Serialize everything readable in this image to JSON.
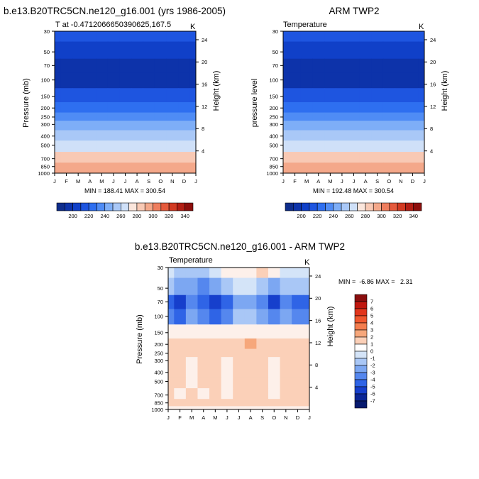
{
  "panels": [
    {
      "title": "b.e13.B20TRC5CN.ne120_g16.001 (yrs 1986-2005)",
      "left_string": "T at -0.4712066650390625,167.5",
      "right_string": "K",
      "ylabel_left": "Pressure (mb)",
      "ylabel_right": "Height (km)",
      "stats": "MIN = 188.41 MAX = 300.54"
    },
    {
      "title": "ARM TWP2",
      "left_string": "Temperature",
      "right_string": "K",
      "ylabel_left": "pressure level",
      "ylabel_right": "Height (km)",
      "stats": "MIN = 192.48 MAX = 300.54"
    },
    {
      "title": "b.e13.B20TRC5CN.ne120_g16.001 - ARM TWP2",
      "left_string": "Temperature",
      "right_string": "K",
      "ylabel_left": "Pressure (mb)",
      "ylabel_right": "Height (km)",
      "stats": "MIN =  -6.86 MAX =   2.31"
    }
  ],
  "chart_data": [
    {
      "type": "heatmap",
      "panel": "model",
      "x": [
        "J",
        "F",
        "M",
        "A",
        "M",
        "J",
        "J",
        "A",
        "S",
        "O",
        "N",
        "D",
        "J"
      ],
      "y_pressure_ticks": [
        30,
        50,
        70,
        100,
        150,
        200,
        250,
        300,
        400,
        500,
        700,
        850,
        1000
      ],
      "y_height_ticks_km": [
        4,
        8,
        12,
        16,
        20,
        24
      ],
      "rows_pressure_mb": [
        30,
        50,
        70,
        100,
        150,
        200,
        250,
        300,
        400,
        500,
        700,
        850,
        1000
      ],
      "values_K": [
        [
          214,
          214,
          213,
          212,
          212,
          213,
          214,
          215,
          216,
          216,
          215,
          214,
          214
        ],
        [
          205,
          205,
          204,
          203,
          202,
          203,
          204,
          205,
          206,
          206,
          205,
          205,
          205
        ],
        [
          197,
          196,
          195,
          194,
          194,
          195,
          196,
          197,
          197,
          197,
          196,
          196,
          197
        ],
        [
          195,
          195,
          195,
          195,
          195,
          195,
          195,
          195,
          195,
          195,
          195,
          195,
          195
        ],
        [
          212,
          212,
          212,
          212,
          212,
          212,
          212,
          212,
          212,
          212,
          212,
          212,
          212
        ],
        [
          221,
          221,
          221,
          221,
          221,
          221,
          221,
          221,
          221,
          221,
          221,
          221,
          221
        ],
        [
          232,
          232,
          232,
          232,
          232,
          232,
          232,
          232,
          232,
          232,
          232,
          232,
          232
        ],
        [
          242,
          242,
          242,
          242,
          242,
          242,
          242,
          242,
          242,
          242,
          242,
          242,
          242
        ],
        [
          259,
          259,
          259,
          259,
          259,
          259,
          259,
          259,
          259,
          259,
          259,
          259,
          259
        ],
        [
          268,
          268,
          268,
          268,
          268,
          268,
          268,
          268,
          268,
          268,
          268,
          268,
          268
        ],
        [
          283,
          283,
          283,
          283,
          283,
          283,
          283,
          283,
          283,
          283,
          283,
          283,
          283
        ],
        [
          291,
          291,
          291,
          291,
          291,
          291,
          291,
          291,
          291,
          291,
          291,
          291,
          291
        ],
        [
          297,
          297,
          297,
          297,
          297,
          297,
          297,
          297,
          297,
          297,
          297,
          297,
          297
        ]
      ],
      "ylim_mb": [
        30,
        1000
      ],
      "log_y": true
    },
    {
      "type": "heatmap",
      "panel": "obs",
      "x": [
        "J",
        "F",
        "M",
        "A",
        "M",
        "J",
        "J",
        "A",
        "S",
        "O",
        "N",
        "D",
        "J"
      ],
      "y_pressure_ticks": [
        30,
        50,
        70,
        100,
        150,
        200,
        250,
        300,
        400,
        500,
        700,
        850,
        1000
      ],
      "y_height_ticks_km": [
        4,
        8,
        12,
        16,
        20,
        24
      ],
      "rows_pressure_mb": [
        30,
        50,
        70,
        100,
        150,
        200,
        250,
        300,
        400,
        500,
        700,
        850,
        1000
      ],
      "values_K": [
        [
          214,
          213,
          213,
          212,
          211,
          211,
          212,
          213,
          214,
          215,
          215,
          215,
          214
        ],
        [
          206,
          205,
          204,
          203,
          202,
          201,
          200,
          201,
          203,
          205,
          206,
          206,
          206
        ],
        [
          199,
          198,
          197,
          196,
          195,
          194,
          193,
          194,
          196,
          198,
          199,
          199,
          199
        ],
        [
          195,
          195,
          195,
          195,
          195,
          195,
          195,
          195,
          195,
          195,
          195,
          195,
          195
        ],
        [
          211,
          211,
          211,
          211,
          211,
          211,
          211,
          211,
          211,
          211,
          211,
          211,
          211
        ],
        [
          221,
          221,
          221,
          221,
          221,
          221,
          221,
          221,
          221,
          221,
          221,
          221,
          221
        ],
        [
          231,
          231,
          231,
          231,
          231,
          231,
          231,
          231,
          231,
          231,
          231,
          231,
          231
        ],
        [
          241,
          241,
          241,
          241,
          241,
          241,
          241,
          241,
          241,
          241,
          241,
          241,
          241
        ],
        [
          258,
          258,
          258,
          258,
          258,
          258,
          258,
          258,
          258,
          258,
          258,
          258,
          258
        ],
        [
          268,
          268,
          268,
          268,
          268,
          268,
          268,
          268,
          268,
          268,
          268,
          268,
          268
        ],
        [
          283,
          283,
          283,
          283,
          283,
          283,
          283,
          283,
          283,
          283,
          283,
          283,
          283
        ],
        [
          291,
          291,
          291,
          291,
          291,
          291,
          291,
          291,
          291,
          291,
          291,
          291,
          291
        ],
        [
          297,
          297,
          297,
          297,
          297,
          297,
          297,
          297,
          297,
          297,
          297,
          297,
          297
        ]
      ],
      "ylim_mb": [
        30,
        1000
      ],
      "log_y": true
    },
    {
      "type": "heatmap",
      "panel": "difference",
      "x": [
        "J",
        "F",
        "M",
        "A",
        "M",
        "J",
        "J",
        "A",
        "S",
        "O",
        "N",
        "D",
        "J"
      ],
      "y_pressure_ticks": [
        30,
        50,
        70,
        100,
        150,
        200,
        250,
        300,
        400,
        500,
        700,
        850,
        1000
      ],
      "y_height_ticks_km": [
        4,
        8,
        12,
        16,
        20,
        24
      ],
      "rows_pressure_mb": [
        30,
        50,
        70,
        100,
        150,
        200,
        250,
        300,
        400,
        500,
        700,
        850,
        1000
      ],
      "values_K": [
        [
          -1,
          -2,
          -2,
          -2,
          -1,
          0,
          0,
          0,
          1,
          0,
          -1,
          -1,
          -1
        ],
        [
          -2,
          -3,
          -3,
          -4,
          -3,
          -2,
          -1,
          -1,
          -2,
          -3,
          -2,
          -2,
          -2
        ],
        [
          -5,
          -6,
          -4,
          -5,
          -6,
          -5,
          -3,
          -3,
          -4,
          -6,
          -4,
          -5,
          -5
        ],
        [
          -4,
          -5,
          -3,
          -4,
          -5,
          -4,
          -2,
          -2,
          -3,
          -4,
          -3,
          -4,
          -4
        ],
        [
          0,
          0,
          0,
          0,
          0,
          0,
          0,
          0,
          0,
          0,
          0,
          0,
          0
        ],
        [
          1,
          1,
          1,
          1,
          1,
          1,
          1,
          2,
          1,
          1,
          1,
          1,
          1
        ],
        [
          1,
          1,
          1,
          1,
          1,
          1,
          1,
          1,
          1,
          1,
          1,
          1,
          1
        ],
        [
          1,
          1,
          0,
          1,
          1,
          0,
          1,
          1,
          1,
          0,
          1,
          1,
          1
        ],
        [
          1,
          1,
          0,
          1,
          1,
          0,
          1,
          1,
          1,
          0,
          1,
          1,
          1
        ],
        [
          1,
          1,
          0,
          1,
          1,
          0,
          1,
          1,
          1,
          0,
          1,
          1,
          1
        ],
        [
          1,
          0,
          1,
          0,
          1,
          0,
          1,
          1,
          1,
          0,
          1,
          1,
          1
        ],
        [
          1,
          1,
          1,
          1,
          1,
          1,
          1,
          1,
          1,
          1,
          1,
          1,
          1
        ],
        [
          0,
          0,
          0,
          0,
          0,
          0,
          0,
          0,
          0,
          0,
          0,
          0,
          0
        ]
      ],
      "ylim_mb": [
        30,
        1000
      ],
      "log_y": true
    }
  ],
  "colorbars": {
    "temperature": {
      "orientation": "horizontal",
      "labels": [
        "200",
        "220",
        "240",
        "260",
        "280",
        "300",
        "320",
        "340"
      ],
      "bins": [
        190,
        200,
        210,
        220,
        230,
        240,
        250,
        260,
        270,
        280,
        290,
        300,
        310,
        320,
        330,
        340,
        350
      ],
      "colors": [
        "#0f2d8c",
        "#0d33aa",
        "#1040c8",
        "#1e55e0",
        "#2e6ff0",
        "#4f8cf5",
        "#7eaef7",
        "#a9c8f7",
        "#cfe0f8",
        "#fbe6dc",
        "#f8c9b4",
        "#f4a88a",
        "#ee7e5e",
        "#e55a3c",
        "#d23a22",
        "#b21e14",
        "#8d0e0c"
      ]
    },
    "difference": {
      "orientation": "vertical",
      "labels": [
        "7",
        "6",
        "5",
        "4",
        "3",
        "2",
        "1",
        "0",
        "-1",
        "-2",
        "-3",
        "-4",
        "-5",
        "-6",
        "-7"
      ],
      "colors": [
        "#8a0e0e",
        "#c0170f",
        "#e2361c",
        "#f0572e",
        "#f47d4e",
        "#f6a77b",
        "#fbd0b8",
        "#ffffff",
        "#d4e4f8",
        "#a9c7f6",
        "#7ca7f2",
        "#5587ee",
        "#2f64e6",
        "#163fcc",
        "#0b2696",
        "#071a6e"
      ]
    }
  },
  "palette": {
    "temp_levels": [
      190,
      200,
      210,
      220,
      230,
      240,
      250,
      260,
      270,
      280,
      290,
      300,
      310,
      320,
      330,
      340,
      350
    ],
    "temp_colors": [
      "#0f2d8c",
      "#0d33aa",
      "#1040c8",
      "#1e55e0",
      "#2e6ff0",
      "#4f8cf5",
      "#7eaef7",
      "#a9c8f7",
      "#cfe0f8",
      "#fbe6dc",
      "#f8c9b4",
      "#f4a88a",
      "#ee7e5e",
      "#e55a3c",
      "#d23a22",
      "#b21e14",
      "#8d0e0c"
    ],
    "diff_levels": [
      -7,
      -6,
      -5,
      -4,
      -3,
      -2,
      -1,
      0,
      1,
      2,
      3,
      4,
      5,
      6,
      7
    ],
    "diff_colors": [
      "#071a6e",
      "#0b2696",
      "#163fcc",
      "#2f64e6",
      "#5587ee",
      "#7ca7f2",
      "#a9c7f6",
      "#d4e4f8",
      "#fdf0ea",
      "#fbd0b8",
      "#f6a77b",
      "#f47d4e",
      "#f0572e",
      "#e2361c",
      "#c0170f",
      "#8a0e0e"
    ]
  }
}
